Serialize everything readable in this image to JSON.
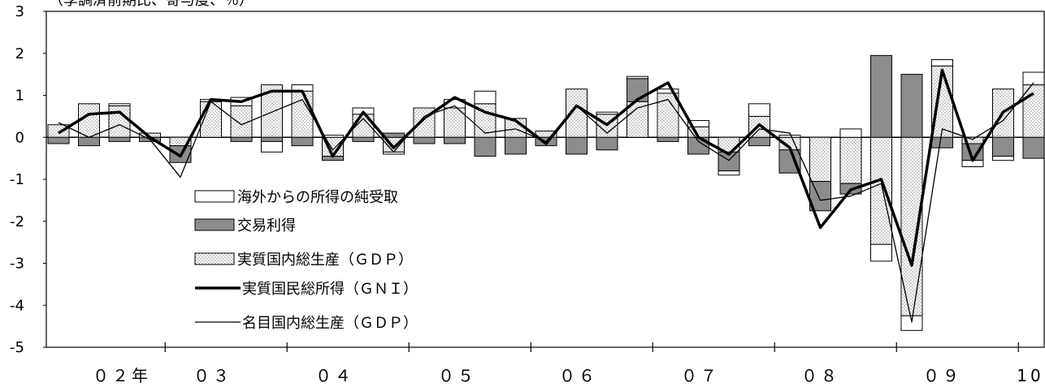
{
  "chart_data": {
    "type": "bar",
    "subtitle": "（季調済前期比、寄与度、％）",
    "ylim": [
      -5,
      3
    ],
    "yticks": [
      "3",
      "2",
      "1",
      "0",
      "-1",
      "-2",
      "-3",
      "-4",
      "-5"
    ],
    "year_labels": [
      "０２年",
      "０３",
      "０４",
      "０５",
      "０６",
      "０７",
      "０８",
      "０９",
      "10"
    ],
    "legend_position": "center-left",
    "legend": {
      "net_income": "海外からの所得の純受取",
      "terms_of_trade": "交易利得",
      "real_gdp": "実質国内総生産（ＧＤＰ）",
      "real_gni": "実質国民総所得（ＧＮＩ）",
      "nominal_gdp": "名目国内総生産（ＧＤＰ）"
    },
    "quarters": 33,
    "first_quarter": "2002Q1",
    "series": {
      "real_gdp": [
        0.3,
        0.8,
        0.75,
        0.1,
        -0.2,
        0.85,
        0.75,
        1.25,
        1.1,
        -0.45,
        0.55,
        -0.35,
        0.7,
        0.7,
        0.8,
        0.45,
        0.15,
        1.15,
        0.55,
        0.85,
        1.05,
        0.25,
        -0.35,
        0.5,
        -0.3,
        -1.05,
        -1.1,
        -2.55,
        -4.25,
        1.7,
        -0.15,
        1.15,
        1.25
      ],
      "terms_of_trade": [
        -0.15,
        -0.2,
        -0.1,
        -0.1,
        -0.4,
        0.0,
        -0.1,
        -0.1,
        -0.2,
        -0.1,
        -0.1,
        0.1,
        -0.15,
        -0.15,
        -0.45,
        -0.4,
        -0.2,
        -0.4,
        -0.3,
        0.55,
        -0.1,
        -0.4,
        -0.45,
        -0.2,
        -0.55,
        -0.7,
        -0.25,
        1.95,
        1.5,
        -0.25,
        -0.4,
        -0.45,
        -0.5
      ],
      "net_income": [
        0.0,
        0.0,
        0.05,
        0.0,
        0.0,
        0.05,
        0.2,
        -0.25,
        0.15,
        0.05,
        0.15,
        -0.05,
        0.0,
        0.2,
        0.3,
        0.0,
        0.0,
        0.0,
        0.05,
        0.05,
        0.1,
        0.15,
        -0.1,
        0.3,
        0.05,
        0.0,
        0.2,
        -0.4,
        -0.35,
        0.15,
        -0.15,
        -0.1,
        0.3
      ],
      "real_gni": [
        0.1,
        0.55,
        0.6,
        0.0,
        -0.45,
        0.9,
        0.85,
        1.1,
        1.1,
        -0.45,
        0.6,
        -0.25,
        0.45,
        0.95,
        0.6,
        0.4,
        -0.15,
        0.75,
        0.3,
        0.9,
        1.3,
        0.0,
        -0.4,
        0.3,
        -0.25,
        -2.15,
        -1.25,
        -1.0,
        -3.05,
        1.6,
        -0.55,
        0.6,
        1.05
      ],
      "nominal_gdp": [
        0.35,
        0.0,
        0.3,
        -0.05,
        -0.95,
        0.85,
        0.3,
        0.6,
        0.9,
        -0.3,
        0.45,
        -0.35,
        0.5,
        0.75,
        0.1,
        0.2,
        -0.1,
        0.75,
        0.1,
        0.7,
        0.9,
        -0.1,
        -0.55,
        0.2,
        0.1,
        -1.5,
        -1.4,
        -1.1,
        -4.4,
        0.2,
        -0.05,
        0.4,
        1.3
      ]
    }
  },
  "colors": {
    "net_income": "#ffffff",
    "terms_of_trade": "#8c8c8c",
    "real_gdp_dots": "#6a6a6a",
    "line": "#000000"
  }
}
